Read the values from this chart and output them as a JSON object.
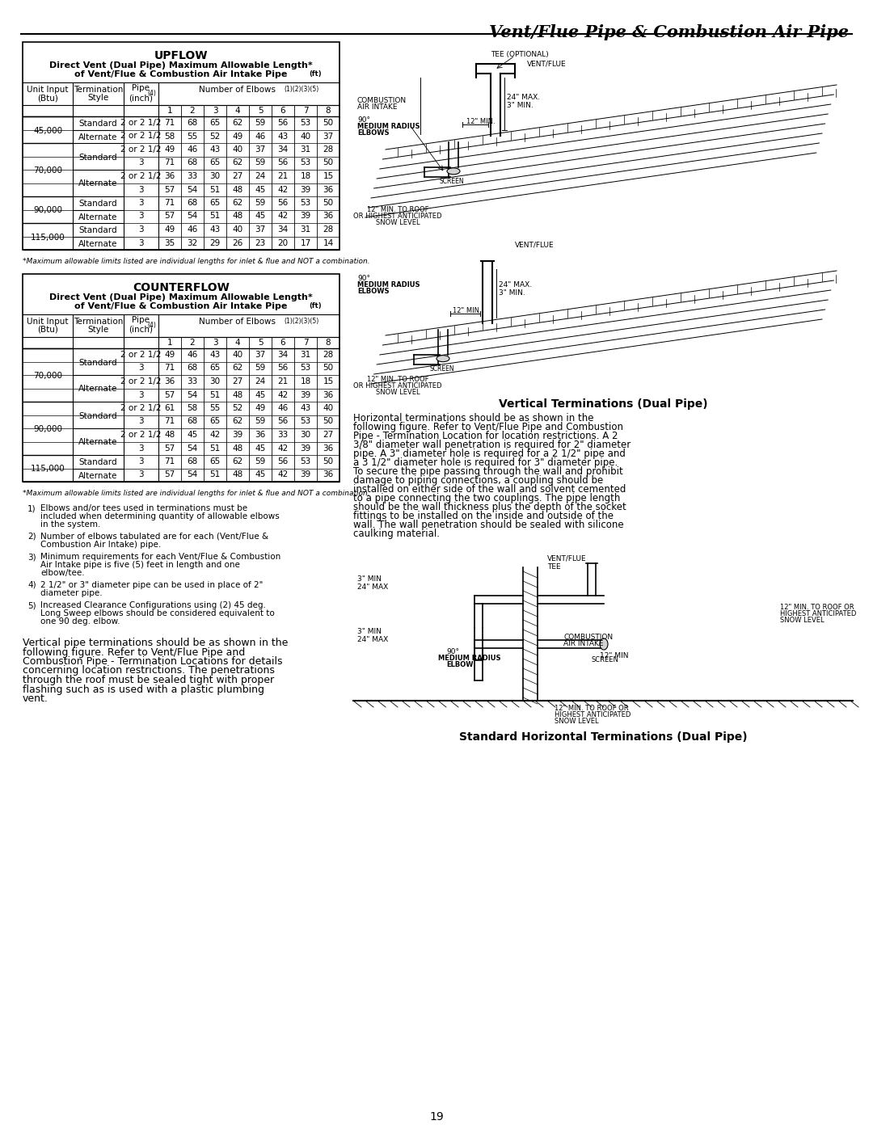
{
  "page_title": "Vent/Flue Pipe & Combustion Air Pipe",
  "upflow_title": "UPFLOW",
  "upflow_subtitle1": "Direct Vent (Dual Pipe) Maximum Allowable Length*",
  "upflow_subtitle2": "of Vent/Flue & Combustion Air Intake Pipe",
  "upflow_subtitle2_super": "(ft)",
  "counterflow_title": "COUNTERFLOW",
  "counterflow_subtitle1": "Direct Vent (Dual Pipe) Maximum Allowable Length*",
  "counterflow_subtitle2": "of Vent/Flue & Combustion Air Intake Pipe",
  "counterflow_subtitle2_super": "(ft)",
  "elbow_numbers": [
    "1",
    "2",
    "3",
    "4",
    "5",
    "6",
    "7",
    "8"
  ],
  "upflow_data": [
    [
      "45,000",
      "Standard",
      "2 or 2 1/2",
      "71",
      "68",
      "65",
      "62",
      "59",
      "56",
      "53",
      "50"
    ],
    [
      "45,000",
      "Alternate",
      "2 or 2 1/2",
      "58",
      "55",
      "52",
      "49",
      "46",
      "43",
      "40",
      "37"
    ],
    [
      "70,000",
      "Standard",
      "2 or 2 1/2",
      "49",
      "46",
      "43",
      "40",
      "37",
      "34",
      "31",
      "28"
    ],
    [
      "70,000",
      "Standard",
      "3",
      "71",
      "68",
      "65",
      "62",
      "59",
      "56",
      "53",
      "50"
    ],
    [
      "70,000",
      "Alternate",
      "2 or 2 1/2",
      "36",
      "33",
      "30",
      "27",
      "24",
      "21",
      "18",
      "15"
    ],
    [
      "70,000",
      "Alternate",
      "3",
      "57",
      "54",
      "51",
      "48",
      "45",
      "42",
      "39",
      "36"
    ],
    [
      "90,000",
      "Standard",
      "3",
      "71",
      "68",
      "65",
      "62",
      "59",
      "56",
      "53",
      "50"
    ],
    [
      "90,000",
      "Alternate",
      "3",
      "57",
      "54",
      "51",
      "48",
      "45",
      "42",
      "39",
      "36"
    ],
    [
      "115,000",
      "Standard",
      "3",
      "49",
      "46",
      "43",
      "40",
      "37",
      "34",
      "31",
      "28"
    ],
    [
      "115,000",
      "Alternate",
      "3",
      "35",
      "32",
      "29",
      "26",
      "23",
      "20",
      "17",
      "14"
    ]
  ],
  "counterflow_data": [
    [
      "70,000",
      "Standard",
      "2 or 2 1/2",
      "49",
      "46",
      "43",
      "40",
      "37",
      "34",
      "31",
      "28"
    ],
    [
      "70,000",
      "Standard",
      "3",
      "71",
      "68",
      "65",
      "62",
      "59",
      "56",
      "53",
      "50"
    ],
    [
      "70,000",
      "Alternate",
      "2 or 2 1/2",
      "36",
      "33",
      "30",
      "27",
      "24",
      "21",
      "18",
      "15"
    ],
    [
      "70,000",
      "Alternate",
      "3",
      "57",
      "54",
      "51",
      "48",
      "45",
      "42",
      "39",
      "36"
    ],
    [
      "90,000",
      "Standard",
      "2 or 2 1/2",
      "61",
      "58",
      "55",
      "52",
      "49",
      "46",
      "43",
      "40"
    ],
    [
      "90,000",
      "Standard",
      "3",
      "71",
      "68",
      "65",
      "62",
      "59",
      "56",
      "53",
      "50"
    ],
    [
      "90,000",
      "Alternate",
      "2 or 2 1/2",
      "48",
      "45",
      "42",
      "39",
      "36",
      "33",
      "30",
      "27"
    ],
    [
      "90,000",
      "Alternate",
      "3",
      "57",
      "54",
      "51",
      "48",
      "45",
      "42",
      "39",
      "36"
    ],
    [
      "115,000",
      "Standard",
      "3",
      "71",
      "68",
      "65",
      "62",
      "59",
      "56",
      "53",
      "50"
    ],
    [
      "115,000",
      "Alternate",
      "3",
      "57",
      "54",
      "51",
      "48",
      "45",
      "42",
      "39",
      "36"
    ]
  ],
  "footnote": "*Maximum allowable limits listed are individual lengths for inlet & flue and NOT a combination.",
  "notes": [
    "Elbows and/or tees used in terminations must be included when determining quantity of allowable elbows in the system.",
    "Number of elbows tabulated are for each (Vent/Flue & Combustion Air Intake) pipe.",
    "Minimum requirements for each Vent/Flue & Combustion Air Intake pipe is five (5) feet in length and one elbow/tee.",
    "2 1/2\" or 3\" diameter pipe can be used in place of 2\" diameter pipe.",
    "Increased Clearance Configurations using (2) 45 deg. Long Sweep elbows should be considered equivalent to one 90 deg. elbow."
  ],
  "vertical_term_caption": "Vertical Terminations (Dual Pipe)",
  "horizontal_term_caption": "Standard Horizontal Terminations (Dual Pipe)",
  "left_para1": "Vertical pipe terminations should be as shown in the following figure.  Refer to Vent/Flue Pipe and Combustion Pipe - Termination Locations for details concerning location restrictions.  The penetrations through the roof must be sealed tight with proper flashing such as is used with a plastic plumbing vent.",
  "left_para1_italic": "Vent/Flue Pipe and Combustion Pipe - Termination Locations",
  "left_para2": "Horizontal terminations should be as shown in the following figure. Refer to Vent/Flue Pipe and Combustion Pipe - Termination Location for location restrictions. A 2 3/8\" diameter  wall penetration is required for 2\" diameter pipe. A 3\" diameter hole is required for a 2 1/2\" pipe and a  3 1/2\" diameter hole is required for 3\" diameter pipe.  To secure the pipe passing through the wall and prohibit damage to piping connections, a coupling should be installed on either side of the wall and solvent cemented to a pipe connecting the two couplings.  The pipe length  should be the wall thickness plus the depth of the socket fittings to be installed on the inside and outside of the wall.  The wall penetration should be sealed with silicone caulking material.",
  "page_number": "19",
  "bg_color": "#ffffff"
}
